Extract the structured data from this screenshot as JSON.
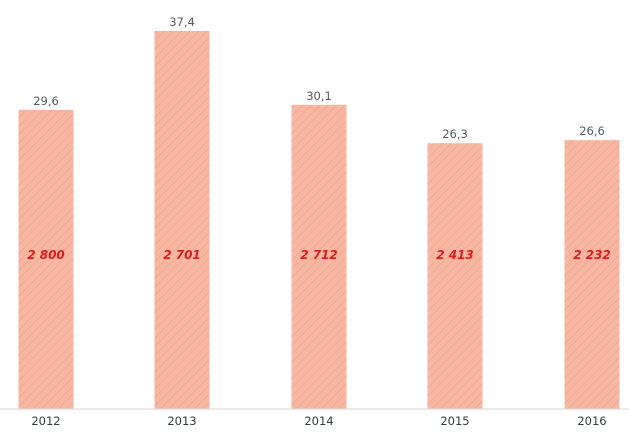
{
  "chart_data": {
    "type": "bar",
    "categories": [
      "2012",
      "2013",
      "2014",
      "2015",
      "2016"
    ],
    "values": [
      29.6,
      37.4,
      30.1,
      26.3,
      26.6
    ],
    "value_labels": [
      "29,6",
      "37,4",
      "30,1",
      "26,3",
      "26,6"
    ],
    "inner_labels": [
      "2 800",
      "2 701",
      "2 712",
      "2 413",
      "2 232"
    ],
    "ylim": [
      0,
      37.4
    ],
    "grid": false,
    "colors": {
      "bar": "#f7b7a3",
      "bar_hatch": "#f3a893",
      "inner_label": "#d81e1e",
      "value_label": "#555a60",
      "axis": "#ddd6d6"
    }
  }
}
